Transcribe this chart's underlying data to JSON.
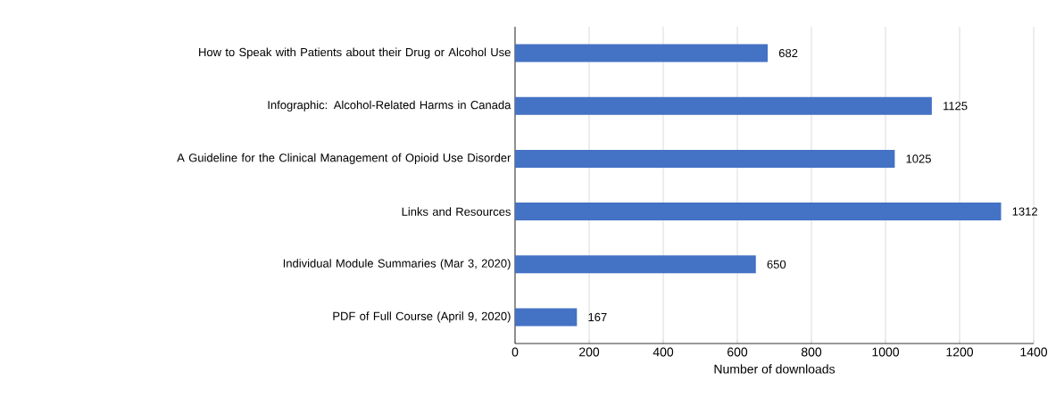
{
  "chart_data": {
    "type": "bar",
    "orientation": "horizontal",
    "xlabel": "Number of downloads",
    "categories": [
      "How to Speak with Patients about their Drug or Alcohol Use",
      "Infographic: Alcohol-Related Harms in Canada",
      "A Guideline for the Clinical Management of Opioid Use Disorder",
      "Links and Resources",
      "Individual Module Summaries (Mar 3, 2020)",
      "PDF of Full Course (April 9, 2020)"
    ],
    "values": [
      682,
      1125,
      1025,
      1312,
      650,
      167
    ],
    "color": "#4472c4",
    "data_labels": true,
    "grid": "x",
    "xlim": [
      0,
      1400
    ],
    "xticks": [
      0,
      200,
      400,
      600,
      800,
      1000,
      1200,
      1400
    ]
  }
}
